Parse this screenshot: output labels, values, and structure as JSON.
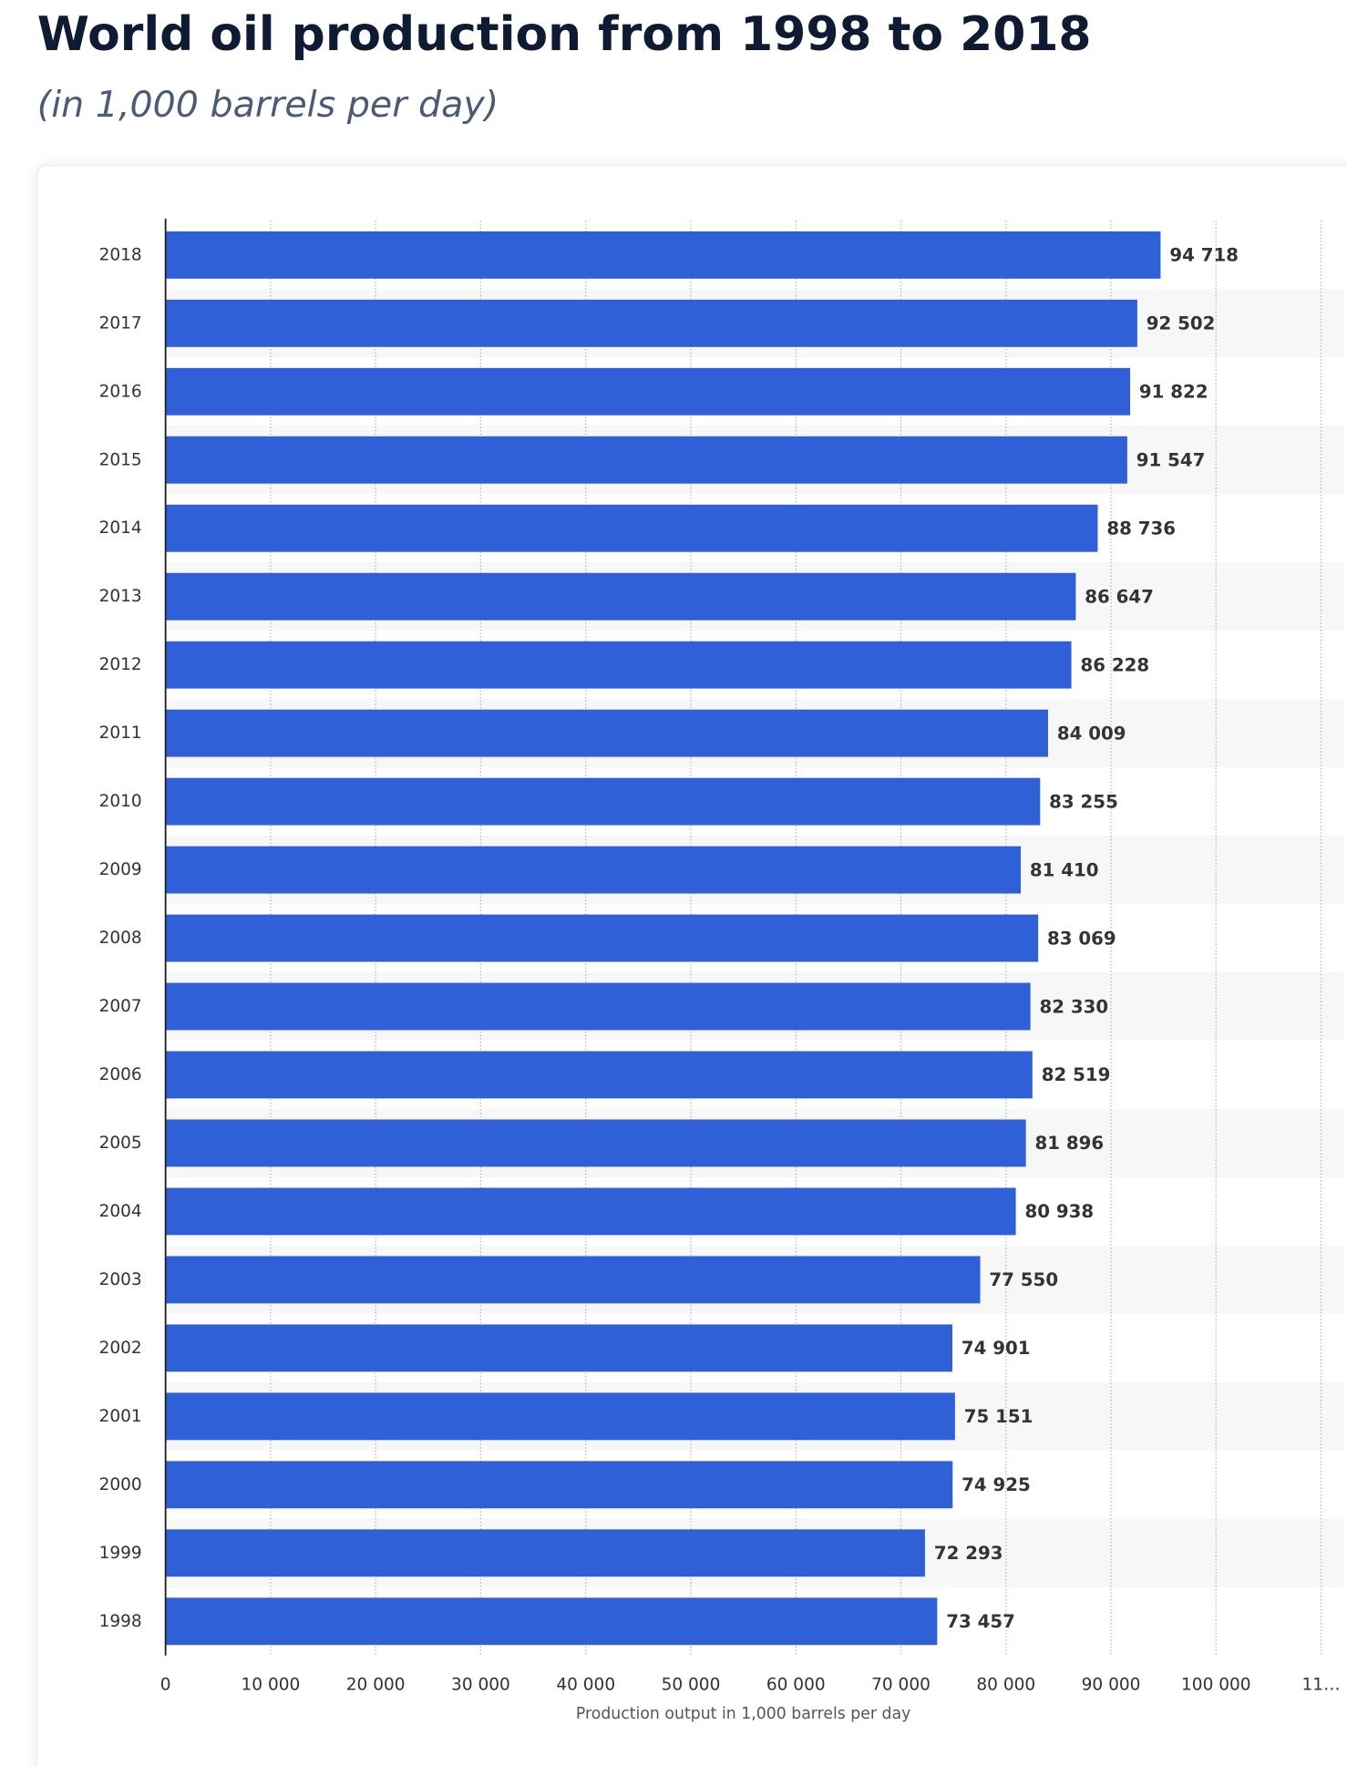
{
  "chart_data": {
    "type": "bar",
    "orientation": "horizontal",
    "title": "World oil production from 1998 to 2018",
    "subtitle": "(in 1,000 barrels per day)",
    "x_label": "Production output in 1,000 barrels per day",
    "categories": [
      "2018",
      "2017",
      "2016",
      "2015",
      "2014",
      "2013",
      "2012",
      "2011",
      "2010",
      "2009",
      "2008",
      "2007",
      "2006",
      "2005",
      "2004",
      "2003",
      "2002",
      "2001",
      "2000",
      "1999",
      "1998"
    ],
    "values": [
      94718,
      92502,
      91822,
      91547,
      88736,
      86647,
      86228,
      84009,
      83255,
      81410,
      83069,
      82330,
      82519,
      81896,
      80938,
      77550,
      74901,
      75151,
      74925,
      72293,
      73457
    ],
    "value_labels": [
      "94 718",
      "92 502",
      "91 822",
      "91 547",
      "88 736",
      "86 647",
      "86 228",
      "84 009",
      "83 255",
      "81 410",
      "83 069",
      "82 330",
      "82 519",
      "81 896",
      "80 938",
      "77 550",
      "74 901",
      "75 151",
      "74 925",
      "72 293",
      "73 457"
    ],
    "color": "#3060d8",
    "xlim": [
      0,
      110000
    ],
    "xticks": [
      0,
      {
        "value": 10000,
        "label": "10 000"
      },
      {
        "value": 20000,
        "label": "20 000"
      },
      {
        "value": 30000,
        "label": "30 000"
      },
      {
        "value": 40000,
        "label": "40 000"
      },
      {
        "value": 50000,
        "label": "50 000"
      },
      {
        "value": 60000,
        "label": "60 000"
      },
      {
        "value": 70000,
        "label": "70 000"
      },
      {
        "value": 80000,
        "label": "80 000"
      },
      {
        "value": 90000,
        "label": "90 000"
      },
      {
        "value": 100000,
        "label": "100 000"
      },
      {
        "value": 110000,
        "label": "11…"
      }
    ],
    "grid": true
  }
}
